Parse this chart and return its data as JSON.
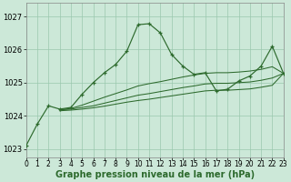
{
  "main_x": [
    0,
    1,
    2,
    3,
    4,
    5,
    6,
    7,
    8,
    9,
    10,
    11,
    12,
    13,
    14,
    15,
    16,
    17,
    18,
    19,
    20,
    21,
    22,
    23
  ],
  "main_y": [
    1023.1,
    1023.75,
    1024.3,
    1024.2,
    1024.25,
    1024.65,
    1025.0,
    1025.3,
    1025.55,
    1025.95,
    1026.75,
    1026.78,
    1026.5,
    1025.85,
    1025.5,
    1025.25,
    1025.3,
    1024.75,
    1024.8,
    1025.05,
    1025.2,
    1025.5,
    1026.1,
    1025.28
  ],
  "line2_x": [
    3,
    4,
    5,
    6,
    7,
    8,
    9,
    10,
    11,
    12,
    13,
    14,
    15,
    16,
    17,
    18,
    19,
    20,
    21,
    22,
    23
  ],
  "line2_y": [
    1024.18,
    1024.22,
    1024.32,
    1024.44,
    1024.56,
    1024.67,
    1024.78,
    1024.9,
    1024.97,
    1025.03,
    1025.1,
    1025.17,
    1025.23,
    1025.28,
    1025.3,
    1025.3,
    1025.32,
    1025.35,
    1025.4,
    1025.48,
    1025.28
  ],
  "line3_x": [
    3,
    4,
    5,
    6,
    7,
    8,
    9,
    10,
    11,
    12,
    13,
    14,
    15,
    16,
    17,
    18,
    19,
    20,
    21,
    22,
    23
  ],
  "line3_y": [
    1024.18,
    1024.2,
    1024.25,
    1024.3,
    1024.38,
    1024.46,
    1024.54,
    1024.62,
    1024.67,
    1024.73,
    1024.79,
    1024.85,
    1024.9,
    1024.96,
    1024.98,
    1024.98,
    1025.0,
    1025.02,
    1025.07,
    1025.14,
    1025.28
  ],
  "line4_x": [
    3,
    4,
    5,
    6,
    7,
    8,
    9,
    10,
    11,
    12,
    13,
    14,
    15,
    16,
    17,
    18,
    19,
    20,
    21,
    22,
    23
  ],
  "line4_y": [
    1024.15,
    1024.17,
    1024.2,
    1024.24,
    1024.29,
    1024.35,
    1024.41,
    1024.46,
    1024.5,
    1024.55,
    1024.6,
    1024.65,
    1024.7,
    1024.75,
    1024.77,
    1024.77,
    1024.79,
    1024.81,
    1024.86,
    1024.92,
    1025.28
  ],
  "line_color": "#2d6a2d",
  "bg_color": "#cce8d8",
  "grid_color": "#9ac8ae",
  "xlabel": "Graphe pression niveau de la mer (hPa)",
  "ylim": [
    1022.75,
    1027.4
  ],
  "xlim": [
    0,
    23
  ],
  "yticks": [
    1023,
    1024,
    1025,
    1026,
    1027
  ],
  "xticks": [
    0,
    1,
    2,
    3,
    4,
    5,
    6,
    7,
    8,
    9,
    10,
    11,
    12,
    13,
    14,
    15,
    16,
    17,
    18,
    19,
    20,
    21,
    22,
    23
  ],
  "xlabel_fontsize": 7,
  "tick_fontsize": 5.5
}
